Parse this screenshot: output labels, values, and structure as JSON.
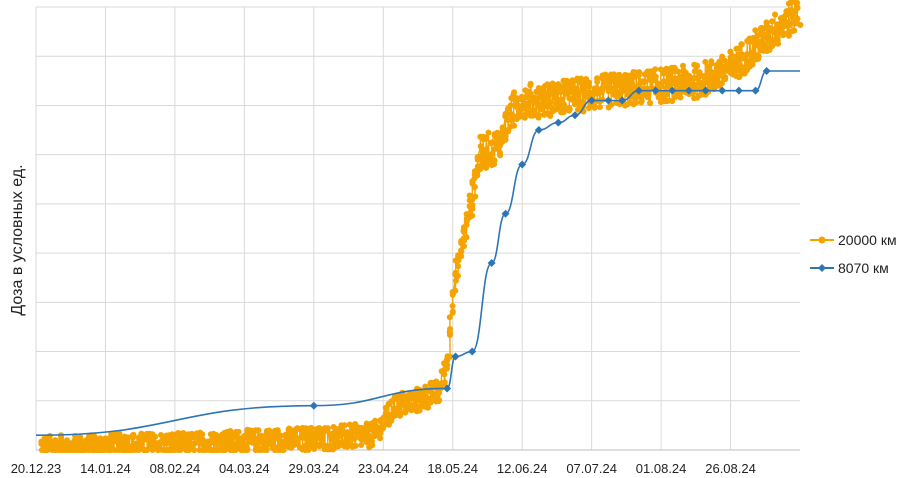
{
  "chart_data": {
    "type": "line",
    "title": "",
    "xlabel": "",
    "ylabel": "Доза в условных ед.",
    "x_tick_labels": [
      "20.12.23",
      "14.01.24",
      "08.02.24",
      "04.03.24",
      "29.03.24",
      "23.04.24",
      "18.05.24",
      "12.06.24",
      "07.07.24",
      "01.08.24",
      "26.08.24"
    ],
    "x_ticks": [
      "2023-12-20",
      "2024-01-14",
      "2024-02-08",
      "2024-03-04",
      "2024-03-29",
      "2024-04-23",
      "2024-05-18",
      "2024-06-12",
      "2024-07-07",
      "2024-08-01",
      "2024-08-26"
    ],
    "xlim": [
      "2023-12-20",
      "2024-09-20"
    ],
    "ylim": [
      0,
      9
    ],
    "y_gridlines": 9,
    "y_tick_labels_shown": false,
    "grid": true,
    "legend_position": "right",
    "series": [
      {
        "name": "20000 км",
        "color": "#F5A300",
        "marker": "circle",
        "points": [
          {
            "x": "2023-12-22",
            "y": 0.05
          },
          {
            "x": "2024-01-05",
            "y": 0.05
          },
          {
            "x": "2024-01-20",
            "y": 0.1
          },
          {
            "x": "2024-02-10",
            "y": 0.1
          },
          {
            "x": "2024-03-01",
            "y": 0.15
          },
          {
            "x": "2024-03-20",
            "y": 0.2
          },
          {
            "x": "2024-04-05",
            "y": 0.25
          },
          {
            "x": "2024-04-20",
            "y": 0.3
          },
          {
            "x": "2024-04-28",
            "y": 0.9
          },
          {
            "x": "2024-05-05",
            "y": 1.0
          },
          {
            "x": "2024-05-14",
            "y": 1.2
          },
          {
            "x": "2024-05-17",
            "y": 2.0
          },
          {
            "x": "2024-05-18",
            "y": 3.0
          },
          {
            "x": "2024-05-21",
            "y": 4.0
          },
          {
            "x": "2024-05-25",
            "y": 5.0
          },
          {
            "x": "2024-05-28",
            "y": 6.0
          },
          {
            "x": "2024-06-04",
            "y": 6.2
          },
          {
            "x": "2024-06-08",
            "y": 6.8
          },
          {
            "x": "2024-06-12",
            "y": 7.1
          },
          {
            "x": "2024-06-20",
            "y": 7.1
          },
          {
            "x": "2024-07-01",
            "y": 7.2
          },
          {
            "x": "2024-07-15",
            "y": 7.3
          },
          {
            "x": "2024-08-01",
            "y": 7.4
          },
          {
            "x": "2024-08-15",
            "y": 7.5
          },
          {
            "x": "2024-08-25",
            "y": 7.7
          },
          {
            "x": "2024-09-05",
            "y": 8.2
          },
          {
            "x": "2024-09-15",
            "y": 8.7
          },
          {
            "x": "2024-09-20",
            "y": 8.9
          }
        ]
      },
      {
        "name": "8070 км",
        "color": "#2E75B6",
        "marker": "diamond",
        "points": [
          {
            "x": "2023-12-20",
            "y": 0.3
          },
          {
            "x": "2024-03-29",
            "y": 0.9
          },
          {
            "x": "2024-05-16",
            "y": 1.25
          },
          {
            "x": "2024-05-19",
            "y": 1.9
          },
          {
            "x": "2024-05-25",
            "y": 2.0
          },
          {
            "x": "2024-06-01",
            "y": 3.8
          },
          {
            "x": "2024-06-06",
            "y": 4.8
          },
          {
            "x": "2024-06-12",
            "y": 5.8
          },
          {
            "x": "2024-06-18",
            "y": 6.5
          },
          {
            "x": "2024-06-25",
            "y": 6.65
          },
          {
            "x": "2024-07-01",
            "y": 6.8
          },
          {
            "x": "2024-07-07",
            "y": 7.1
          },
          {
            "x": "2024-07-13",
            "y": 7.1
          },
          {
            "x": "2024-07-18",
            "y": 7.1
          },
          {
            "x": "2024-07-24",
            "y": 7.3
          },
          {
            "x": "2024-07-30",
            "y": 7.3
          },
          {
            "x": "2024-08-05",
            "y": 7.3
          },
          {
            "x": "2024-08-11",
            "y": 7.3
          },
          {
            "x": "2024-08-17",
            "y": 7.3
          },
          {
            "x": "2024-08-23",
            "y": 7.3
          },
          {
            "x": "2024-08-29",
            "y": 7.3
          },
          {
            "x": "2024-09-04",
            "y": 7.3
          },
          {
            "x": "2024-09-08",
            "y": 7.7
          },
          {
            "x": "2024-09-20",
            "y": 7.7
          }
        ]
      }
    ]
  }
}
